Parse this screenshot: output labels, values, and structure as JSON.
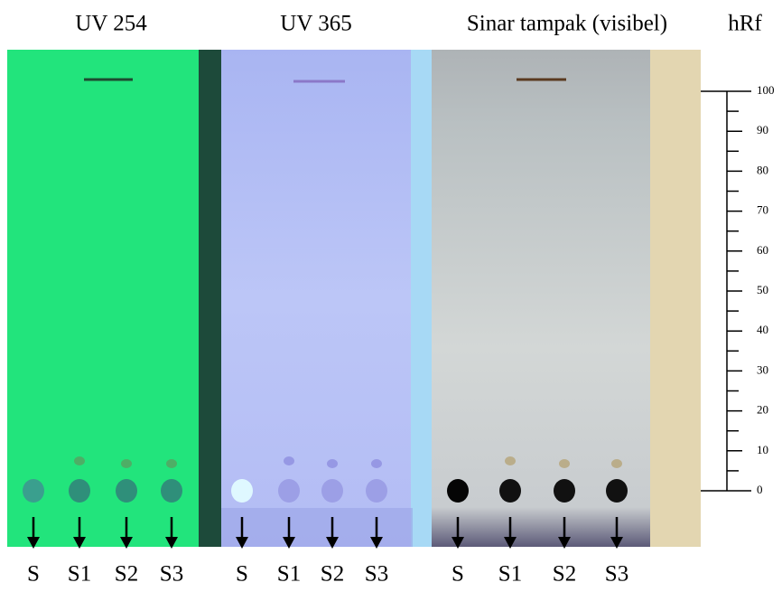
{
  "panels": [
    {
      "title": "UV 254",
      "lanes": [
        "S",
        "S1",
        "S2",
        "S3"
      ]
    },
    {
      "title": "UV 365",
      "lanes": [
        "S",
        "S1",
        "S2",
        "S3"
      ]
    },
    {
      "title": "Sinar tampak (visibel)",
      "lanes": [
        "S",
        "S1",
        "S2",
        "S3"
      ]
    }
  ],
  "scale": {
    "title": "hRf",
    "ticks": [
      0,
      10,
      20,
      30,
      40,
      50,
      60,
      70,
      80,
      90,
      100
    ]
  }
}
